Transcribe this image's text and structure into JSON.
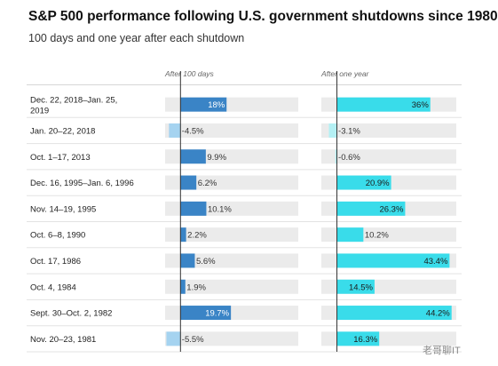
{
  "title": "S&P 500 performance following U.S. government shutdowns since 1980",
  "subtitle": "100 days and one year after each shutdown",
  "watermark": "老哥聊IT",
  "chart_data": {
    "type": "bar",
    "categories": [
      [
        "Dec. 22, 2018–Jan. 25,",
        "2019"
      ],
      [
        "Jan. 20–22, 2018"
      ],
      [
        "Oct. 1–17, 2013"
      ],
      [
        "Dec. 16, 1995–Jan. 6, 1996"
      ],
      [
        "Nov. 14–19, 1995"
      ],
      [
        "Oct. 6–8, 1990"
      ],
      [
        "Oct. 17, 1986"
      ],
      [
        "Oct. 4, 1984"
      ],
      [
        "Sept. 30–Oct. 2, 1982"
      ],
      [
        "Nov. 20–23, 1981"
      ]
    ],
    "series": [
      {
        "name": "After 100 days",
        "values": [
          18,
          -4.5,
          9.9,
          6.2,
          10.1,
          2.2,
          5.6,
          1.9,
          19.7,
          -5.5
        ],
        "labels": [
          "18%",
          "-4.5%",
          "9.9%",
          "6.2%",
          "10.1%",
          "2.2%",
          "5.6%",
          "1.9%",
          "19.7%",
          "-5.5%"
        ],
        "color_positive": "#3a84c6",
        "color_negative": "#a5d3f0"
      },
      {
        "name": "After one year",
        "values": [
          36,
          -3.1,
          -0.6,
          20.9,
          26.3,
          10.2,
          43.4,
          14.5,
          44.2,
          16.3
        ],
        "labels": [
          "36%",
          "-3.1%",
          "-0.6%",
          "20.9%",
          "26.3%",
          "10.2%",
          "43.4%",
          "14.5%",
          "44.2%",
          "16.3%"
        ],
        "color_positive": "#39dcea",
        "color_negative": "#b4f0f4"
      }
    ],
    "xlim": [
      -6,
      46
    ],
    "background_track_color": "#ebebeb",
    "legend": "none",
    "grid": false
  }
}
